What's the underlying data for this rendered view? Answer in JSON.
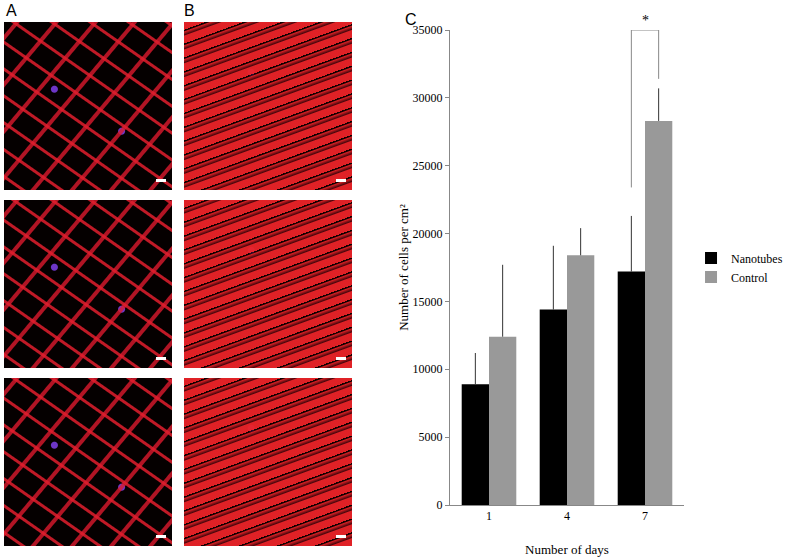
{
  "panel_labels": [
    "A",
    "B",
    "C"
  ],
  "chart_data": {
    "type": "bar",
    "x_label": "Number of days",
    "y_label": "Number of cells per cm²",
    "categories": [
      "1",
      "4",
      "7"
    ],
    "series": [
      {
        "name": "Nanotubes",
        "color": "#000000",
        "values": [
          8900,
          14400,
          17200
        ],
        "error": [
          2300,
          4700,
          4100
        ]
      },
      {
        "name": "Control",
        "color": "#999999",
        "values": [
          12400,
          18400,
          28300
        ],
        "error": [
          5300,
          2000,
          2400
        ]
      }
    ],
    "ylim": [
      0,
      35000
    ],
    "yticks": [
      0,
      5000,
      10000,
      15000,
      20000,
      25000,
      30000,
      35000
    ],
    "grid": false,
    "legend": "right",
    "significance": {
      "category": "7",
      "label": "*"
    }
  }
}
